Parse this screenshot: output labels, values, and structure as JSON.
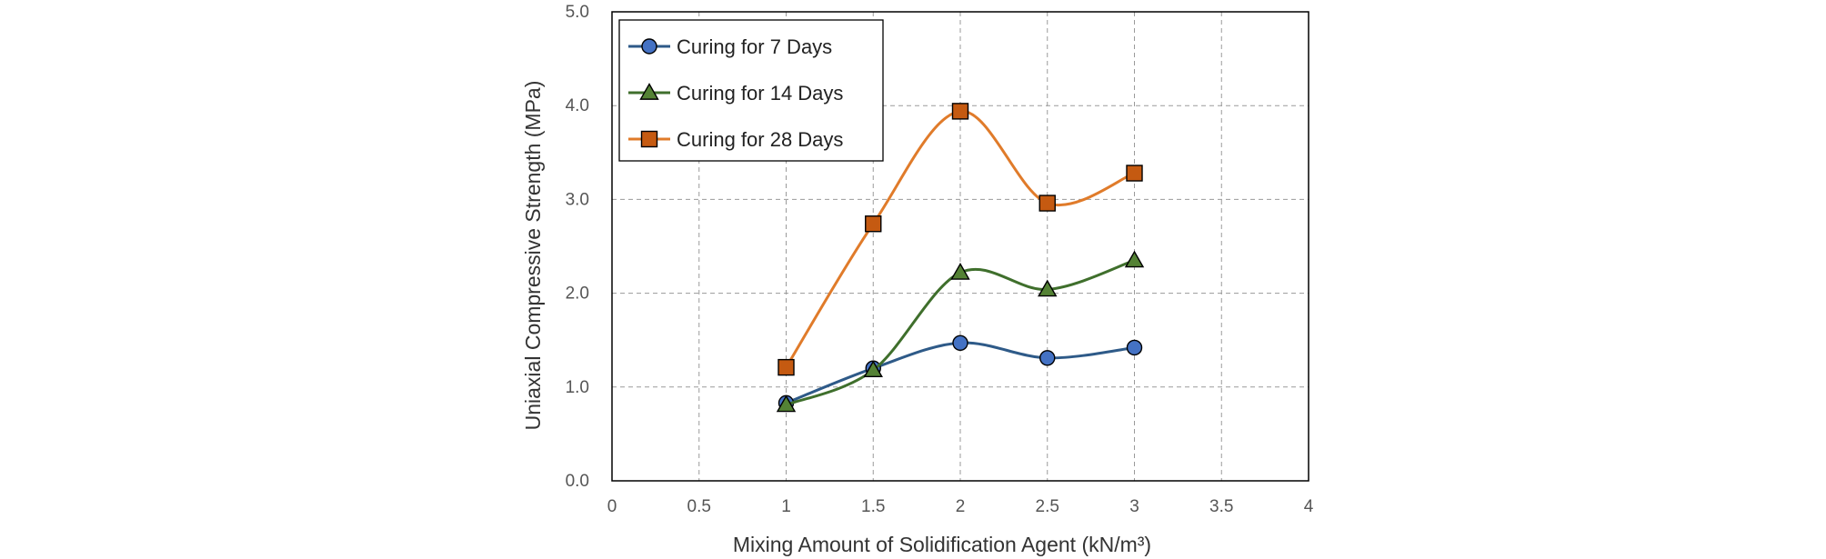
{
  "chart_data": {
    "type": "line",
    "title": "",
    "xlabel": "Mixing Amount of Solidification Agent (kN/m³)",
    "ylabel": "Uniaxial Compressive Strength (MPa)",
    "xlim": [
      0,
      4
    ],
    "ylim": [
      0,
      5
    ],
    "x_ticks": [
      "0",
      "0.5",
      "1",
      "1.5",
      "2",
      "2.5",
      "3",
      "3.5",
      "4"
    ],
    "y_ticks": [
      "0.0",
      "1.0",
      "2.0",
      "3.0",
      "4.0",
      "5.0"
    ],
    "grid": true,
    "grid_style": "dashed",
    "smooth": true,
    "legend_position": "top-left",
    "x": [
      1,
      1.5,
      2,
      2.5,
      3
    ],
    "series": [
      {
        "name": "Curing for 7 Days",
        "marker": "circle",
        "line_color": "#2E5A88",
        "fill_color": "#4472C4",
        "values": [
          0.83,
          1.2,
          1.47,
          1.31,
          1.42
        ]
      },
      {
        "name": "Curing for 14 Days",
        "marker": "triangle",
        "line_color": "#3F6F2C",
        "fill_color": "#548235",
        "values": [
          0.81,
          1.18,
          2.22,
          2.04,
          2.35
        ]
      },
      {
        "name": "Curing for 28 Days",
        "marker": "square",
        "line_color": "#E07B2A",
        "fill_color": "#C55A11",
        "values": [
          1.21,
          2.74,
          3.94,
          2.96,
          3.28
        ]
      }
    ]
  }
}
